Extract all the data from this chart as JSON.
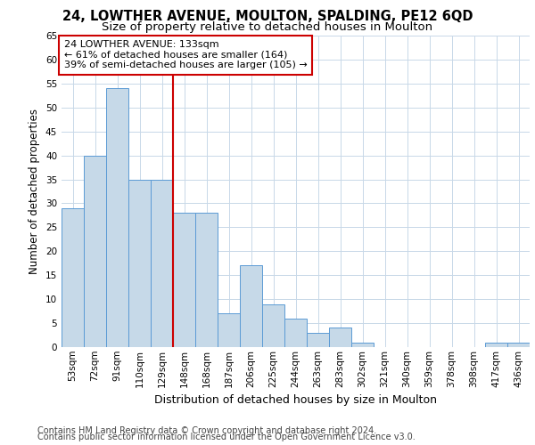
{
  "title1": "24, LOWTHER AVENUE, MOULTON, SPALDING, PE12 6QD",
  "title2": "Size of property relative to detached houses in Moulton",
  "xlabel": "Distribution of detached houses by size in Moulton",
  "ylabel": "Number of detached properties",
  "footnote1": "Contains HM Land Registry data © Crown copyright and database right 2024.",
  "footnote2": "Contains public sector information licensed under the Open Government Licence v3.0.",
  "bin_labels": [
    "53sqm",
    "72sqm",
    "91sqm",
    "110sqm",
    "129sqm",
    "148sqm",
    "168sqm",
    "187sqm",
    "206sqm",
    "225sqm",
    "244sqm",
    "263sqm",
    "283sqm",
    "302sqm",
    "321sqm",
    "340sqm",
    "359sqm",
    "378sqm",
    "398sqm",
    "417sqm",
    "436sqm"
  ],
  "bar_values": [
    29,
    40,
    54,
    35,
    35,
    28,
    28,
    7,
    17,
    9,
    6,
    3,
    4,
    1,
    0,
    0,
    0,
    0,
    0,
    1,
    1
  ],
  "bar_color": "#c6d9e8",
  "bar_edge_color": "#5b9bd5",
  "bar_width": 1.0,
  "vline_color": "#cc0000",
  "ylim": [
    0,
    65
  ],
  "yticks": [
    0,
    5,
    10,
    15,
    20,
    25,
    30,
    35,
    40,
    45,
    50,
    55,
    60,
    65
  ],
  "annotation_text": "24 LOWTHER AVENUE: 133sqm\n← 61% of detached houses are smaller (164)\n39% of semi-detached houses are larger (105) →",
  "annotation_box_color": "#ffffff",
  "annotation_box_edge": "#cc0000",
  "bg_color": "#ffffff",
  "grid_color": "#c8d8e8",
  "title1_fontsize": 10.5,
  "title2_fontsize": 9.5,
  "axis_label_fontsize": 8.5,
  "tick_fontsize": 7.5,
  "annotation_fontsize": 8,
  "footnote_fontsize": 7
}
